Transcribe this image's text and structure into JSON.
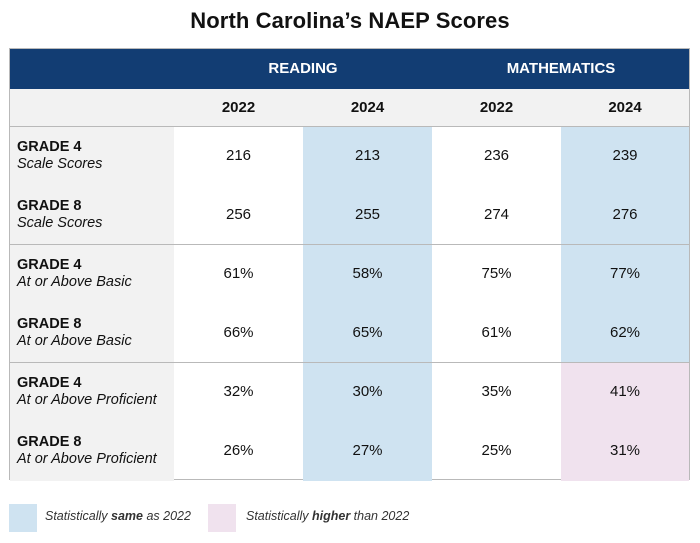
{
  "title": "North Carolina’s NAEP Scores",
  "colors": {
    "header": "#123d73",
    "same": "#cfe3f1",
    "higher": "#f0e2ee",
    "label_bg": "#f2f2f2"
  },
  "groups": [
    "READING",
    "MATHEMATICS"
  ],
  "years": [
    "2022",
    "2024",
    "2022",
    "2024"
  ],
  "rows": [
    {
      "grade": "GRADE 4",
      "measure": "Scale Scores",
      "values": [
        "216",
        "213",
        "236",
        "239"
      ]
    },
    {
      "grade": "GRADE 8",
      "measure": "Scale Scores",
      "values": [
        "256",
        "255",
        "274",
        "276"
      ]
    },
    {
      "grade": "GRADE 4",
      "measure": "At or Above Basic",
      "values": [
        "61%",
        "58%",
        "75%",
        "77%"
      ]
    },
    {
      "grade": "GRADE 8",
      "measure": "At or Above Basic",
      "values": [
        "66%",
        "65%",
        "61%",
        "62%"
      ]
    },
    {
      "grade": "GRADE 4",
      "measure": "At or Above Proficient",
      "values": [
        "32%",
        "30%",
        "35%",
        "41%"
      ]
    },
    {
      "grade": "GRADE 8",
      "measure": "At or Above Proficient",
      "values": [
        "26%",
        "27%",
        "25%",
        "31%"
      ]
    }
  ],
  "legend": {
    "same": {
      "prefix": "Statistically ",
      "bold": "same",
      "suffix": " as 2022"
    },
    "higher": {
      "prefix": "Statistically ",
      "bold": "higher",
      "suffix": " than 2022"
    }
  },
  "chart_data": {
    "type": "table",
    "title": "North Carolina’s NAEP Scores",
    "columns": [
      {
        "subject": "READING",
        "year": "2022"
      },
      {
        "subject": "READING",
        "year": "2024"
      },
      {
        "subject": "MATHEMATICS",
        "year": "2022"
      },
      {
        "subject": "MATHEMATICS",
        "year": "2024"
      }
    ],
    "series": [
      {
        "name": "GRADE 4 Scale Scores",
        "values": [
          216,
          213,
          236,
          239
        ]
      },
      {
        "name": "GRADE 8 Scale Scores",
        "values": [
          256,
          255,
          274,
          276
        ]
      },
      {
        "name": "GRADE 4 At or Above Basic",
        "values": [
          61,
          58,
          75,
          77
        ]
      },
      {
        "name": "GRADE 8 At or Above Basic",
        "values": [
          66,
          65,
          61,
          62
        ]
      },
      {
        "name": "GRADE 4 At or Above Proficient",
        "values": [
          32,
          30,
          35,
          41
        ]
      },
      {
        "name": "GRADE 8 At or Above Proficient",
        "values": [
          26,
          27,
          25,
          31
        ]
      }
    ],
    "significance_2024": [
      [
        "same",
        "same"
      ],
      [
        "same",
        "same"
      ],
      [
        "same",
        "same"
      ],
      [
        "same",
        "same"
      ],
      [
        "same",
        "higher"
      ],
      [
        "same",
        "higher"
      ]
    ]
  }
}
